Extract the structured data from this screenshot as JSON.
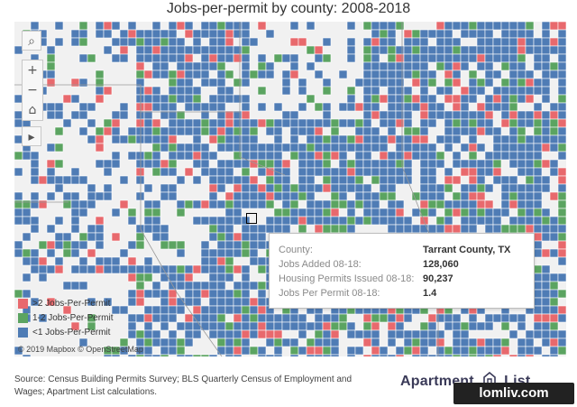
{
  "title": "Jobs-per-permit by county: 2008-2018",
  "colors": {
    "over2": "#e8696d",
    "one_to_two": "#5ba461",
    "under1": "#4f7cb5",
    "background": "#f1f1f1",
    "border": "#bfbfbf"
  },
  "controls": {
    "search_icon": "⌕",
    "zoom_in": "+",
    "zoom_out": "−",
    "home_icon": "⌂",
    "play_icon": "▸"
  },
  "legend": [
    {
      "label": ">2 Jobs-Per-Permit",
      "color": "#e8696d"
    },
    {
      "label": "1-2 Jobs-Per-Permit",
      "color": "#5ba461"
    },
    {
      "label": "<1 Jobs-Per-Permit",
      "color": "#4f7cb5"
    }
  ],
  "attribution": "© 2019 Mapbox © OpenStreetMap",
  "tooltip": {
    "rows": [
      {
        "label": "County:",
        "value": "Tarrant County, TX"
      },
      {
        "label": "Jobs Added 08-18:",
        "value": "128,060"
      },
      {
        "label": "Housing Permits Issued 08-18:",
        "value": "90,237"
      },
      {
        "label": "Jobs Per Permit 08-18:",
        "value": "1.4"
      }
    ]
  },
  "source": "Source: Census Building Permits Survey; BLS Quarterly Census of Employment and Wages; Apartment List calculations.",
  "brand": "Apartment List",
  "brand_left": "Apartment",
  "brand_right": "List",
  "watermark": "lomliv.com"
}
